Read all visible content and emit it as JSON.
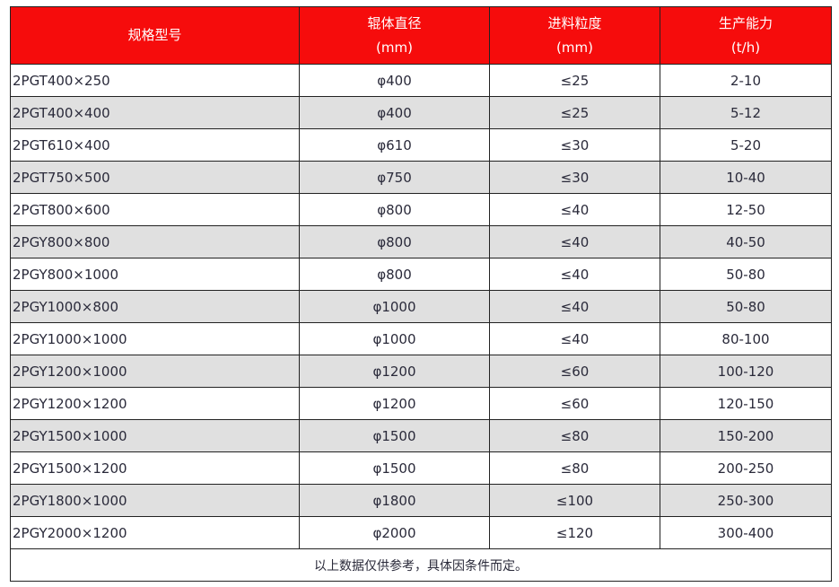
{
  "header": [
    {
      "line1": "规格型号",
      "line2": ""
    },
    {
      "line1": "辊体直径",
      "line2": "(mm)"
    },
    {
      "line1": "进料粒度",
      "line2": "(mm)"
    },
    {
      "line1": "生产能力",
      "line2": "(t/h)"
    }
  ],
  "rows": [
    [
      "2PGT400×250",
      "φ400",
      "≤25",
      "2-10"
    ],
    [
      "2PGT400×400",
      "φ400",
      "≤25",
      "5-12"
    ],
    [
      "2PGT610×400",
      "φ610",
      "≤30",
      "5-20"
    ],
    [
      "2PGT750×500",
      "φ750",
      "≤30",
      "10-40"
    ],
    [
      "2PGT800×600",
      "φ800",
      "≤40",
      "12-50"
    ],
    [
      "2PGY800×800",
      "φ800",
      "≤40",
      "40-50"
    ],
    [
      "2PGY800×1000",
      "φ800",
      "≤40",
      "50-80"
    ],
    [
      "2PGY1000×800",
      "φ1000",
      "≤40",
      "50-80"
    ],
    [
      "2PGY1000×1000",
      "φ1000",
      "≤40",
      "80-100"
    ],
    [
      "2PGY1200×1000",
      "φ1200",
      "≤60",
      "100-120"
    ],
    [
      "2PGY1200×1200",
      "φ1200",
      "≤60",
      "120-150"
    ],
    [
      "2PGY1500×1000",
      "φ1500",
      "≤80",
      "150-200"
    ],
    [
      "2PGY1500×1200",
      "φ1500",
      "≤80",
      "200-250"
    ],
    [
      "2PGY1800×1000",
      "φ1800",
      "≤100",
      "250-300"
    ],
    [
      "2PGY2000×1200",
      "φ2000",
      "≤120",
      "300-400"
    ]
  ],
  "note": "以上数据仅供参考，具体因条件而定。",
  "colors": {
    "header_bg": "#f60c0c",
    "alt_row": "#e0e0e0"
  }
}
